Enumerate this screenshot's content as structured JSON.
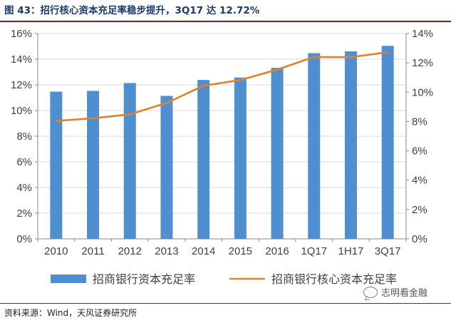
{
  "figure": {
    "title": "图 43：招行核心资本充足率稳步提升，3Q17 达 12.72%",
    "source": "资料来源：Wind，天风证券研究所",
    "watermark": "志明看金融"
  },
  "colors": {
    "bar": "#4f8fd0",
    "line": "#e0822c",
    "grid": "#d9d9d9",
    "axis": "#888888",
    "text": "#404040"
  },
  "chart_data": {
    "type": "bar",
    "categories": [
      "2010",
      "2011",
      "2012",
      "2013",
      "2014",
      "2015",
      "2016",
      "1Q17",
      "1H17",
      "3Q17"
    ],
    "series": [
      {
        "name": "招商银行资本充足率",
        "kind": "bar",
        "axis": "left",
        "values": [
          11.47,
          11.53,
          12.14,
          11.14,
          12.38,
          12.57,
          13.33,
          14.47,
          14.61,
          15.04
        ]
      },
      {
        "name": "招商银行核心资本充足率",
        "kind": "line",
        "axis": "right",
        "values": [
          8.04,
          8.22,
          8.49,
          9.27,
          10.44,
          10.83,
          11.54,
          12.4,
          12.39,
          12.72
        ]
      }
    ],
    "left_axis": {
      "min": 0,
      "max": 16,
      "step": 2,
      "ticks": [
        "0%",
        "2%",
        "4%",
        "6%",
        "8%",
        "10%",
        "12%",
        "14%",
        "16%"
      ]
    },
    "right_axis": {
      "min": 0,
      "max": 14,
      "step": 2,
      "ticks": [
        "0%",
        "2%",
        "4%",
        "6%",
        "8%",
        "10%",
        "12%",
        "14%"
      ]
    },
    "grid": true,
    "legend_position": "bottom"
  }
}
